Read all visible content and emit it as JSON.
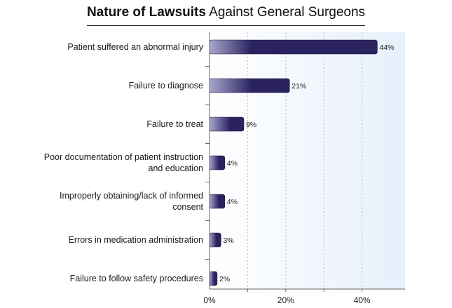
{
  "chart_data": {
    "type": "bar",
    "orientation": "horizontal",
    "title_bold": "Nature of Lawsuits",
    "title_rest": "Against General Surgeons",
    "categories": [
      [
        "Patient suffered an abnormal injury"
      ],
      [
        "Failure to diagnose"
      ],
      [
        "Failure to treat"
      ],
      [
        "Poor documentation of patient instruction",
        "and education"
      ],
      [
        "Improperly obtaining/lack of informed",
        "consent"
      ],
      [
        "Errors in medication administration"
      ],
      [
        "Failure to follow safety procedures"
      ]
    ],
    "values": [
      44,
      21,
      9,
      4,
      4,
      3,
      2
    ],
    "value_labels": [
      "44%",
      "21%",
      "9%",
      "4%",
      "4%",
      "3%",
      "2%"
    ],
    "xlim": [
      0,
      50
    ],
    "x_ticks": [
      0,
      20,
      40
    ],
    "x_tick_labels": [
      "0%",
      "20%",
      "40%"
    ],
    "gridlines": [
      10,
      20,
      30,
      40
    ],
    "colors": {
      "bar_dark": "#2a2360",
      "bar_light": "#a9a6cc",
      "plot_bg_left": "#ffffff",
      "plot_bg_right": "#e6effb",
      "grid": "#b8b8c8",
      "axis": "#666666"
    }
  }
}
